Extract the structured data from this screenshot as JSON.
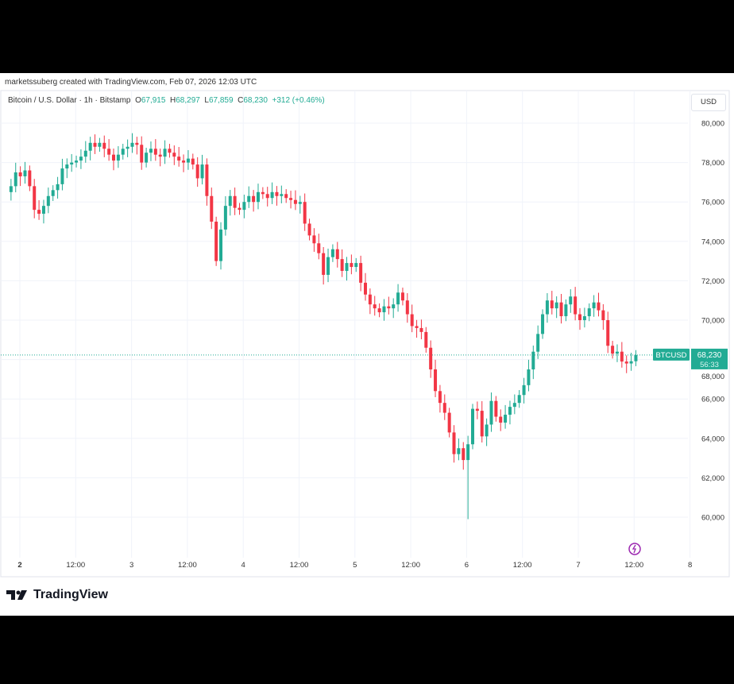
{
  "header": {
    "credit": "marketssuberg created with TradingView.com, Feb 07, 2026 12:03 UTC",
    "symbol": "Bitcoin / U.S. Dollar · 1h · Bitstamp",
    "open_label": "O",
    "open": "67,915",
    "high_label": "H",
    "high": "68,297",
    "low_label": "L",
    "low": "67,859",
    "close_label": "C",
    "close": "68,230",
    "change": "+312 (+0.46%)",
    "currency_button": "USD"
  },
  "branding": {
    "logo_text": "TradingView"
  },
  "colors": {
    "up": "#22ab94",
    "down": "#f23645",
    "grid": "#f0f3fa",
    "text": "#333333"
  },
  "chart_data": {
    "type": "candlestick",
    "interval": "1h",
    "ylim": [
      58500,
      81000
    ],
    "y_ticks": [
      60000,
      62000,
      64000,
      66000,
      68000,
      70000,
      72000,
      74000,
      76000,
      78000,
      80000
    ],
    "y_tick_labels": [
      "60,000",
      "62,000",
      "64,000",
      "66,000",
      "68,000",
      "70,000",
      "72,000",
      "74,000",
      "76,000",
      "78,000",
      "80,000"
    ],
    "x_tick_labels": [
      "2",
      "12:00",
      "3",
      "12:00",
      "4",
      "12:00",
      "5",
      "12:00",
      "6",
      "12:00",
      "7",
      "12:00",
      "8"
    ],
    "closes": [
      76500,
      76800,
      77500,
      77300,
      77600,
      76800,
      75600,
      75400,
      75800,
      76300,
      76600,
      76900,
      77700,
      77900,
      78000,
      78100,
      78300,
      78600,
      79000,
      78800,
      79000,
      78700,
      78400,
      78100,
      78400,
      78700,
      78800,
      79000,
      78900,
      78000,
      78500,
      78700,
      78400,
      78300,
      78700,
      78500,
      78300,
      78100,
      78000,
      78200,
      77900,
      77200,
      77900,
      76300,
      75000,
      73000,
      74600,
      75800,
      76300,
      75700,
      75600,
      76000,
      76300,
      76000,
      76500,
      76400,
      76200,
      76500,
      76300,
      76400,
      76200,
      76100,
      75900,
      76000,
      74900,
      74300,
      73900,
      73400,
      72300,
      73200,
      73600,
      73100,
      72500,
      72900,
      72700,
      72900,
      71900,
      71300,
      70800,
      70600,
      70400,
      70700,
      70600,
      70800,
      71400,
      71000,
      70300,
      69700,
      69600,
      69400,
      68600,
      67500,
      66400,
      65800,
      65300,
      64300,
      63200,
      63500,
      62900,
      63700,
      65500,
      65400,
      64100,
      64700,
      65900,
      65100,
      64800,
      65200,
      65600,
      65800,
      66200,
      66700,
      67500,
      68400,
      69300,
      70300,
      71000,
      70600,
      70900,
      70200,
      70800,
      71200,
      70300,
      70000,
      70200,
      70600,
      70900,
      70500,
      70000,
      68700,
      68300,
      68400,
      67900,
      67800,
      67915,
      68230
    ],
    "notable_low": {
      "index": 99,
      "value": 59900
    },
    "last_price": 68230,
    "last_price_label": "68,230",
    "countdown": "56:33",
    "symbol_tag": "BTCUSD"
  }
}
